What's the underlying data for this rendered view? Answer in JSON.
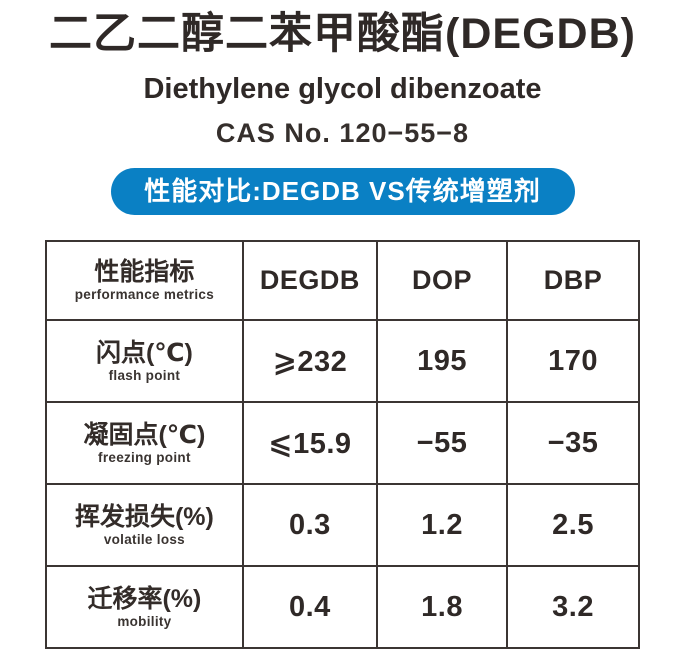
{
  "colors": {
    "background": "#ffffff",
    "text": "#2f2927",
    "badge_background": "#0a80c4",
    "badge_text": "#ffffff",
    "table_border": "#3b3533"
  },
  "header": {
    "title_zh": "二乙二醇二苯甲酸酯(DEGDB)",
    "subtitle_en": "Diethylene glycol dibenzoate",
    "cas_number": "CAS No. 120−55−8",
    "badge_label": "性能对比:DEGDB VS传统增塑剂"
  },
  "table": {
    "header": {
      "metric_zh": "性能指标",
      "metric_en": "performance metrics",
      "columns": [
        "DEGDB",
        "DOP",
        "DBP"
      ]
    },
    "rows": [
      {
        "label_zh": "闪点(℃)",
        "label_en": "flash point",
        "values": [
          "⩾232",
          "195",
          "170"
        ]
      },
      {
        "label_zh": "凝固点(℃)",
        "label_en": "freezing point",
        "values": [
          "⩽15.9",
          "−55",
          "−35"
        ]
      },
      {
        "label_zh": "挥发损失(%)",
        "label_en": "volatile loss",
        "values": [
          "0.3",
          "1.2",
          "2.5"
        ]
      },
      {
        "label_zh": "迁移率(%)",
        "label_en": "mobility",
        "values": [
          "0.4",
          "1.8",
          "3.2"
        ]
      }
    ]
  }
}
